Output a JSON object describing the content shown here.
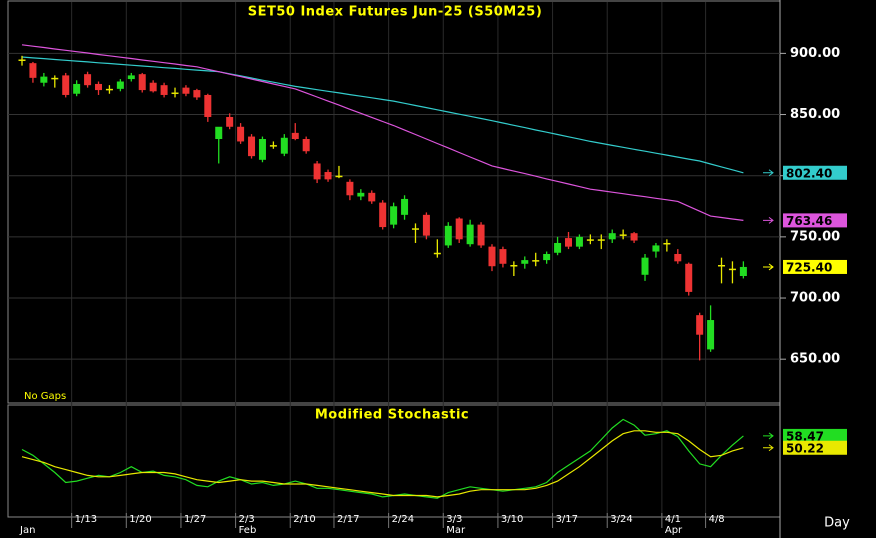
{
  "chart_data": [
    {
      "type": "candlestick",
      "title": "SET50  Index  Futures  Jun-25  (S50M25)",
      "note": "No  Gaps",
      "categories": [
        null,
        null,
        null,
        null,
        null,
        "1/13",
        null,
        null,
        null,
        null,
        "1/20",
        null,
        null,
        null,
        null,
        "1/27",
        null,
        null,
        null,
        null,
        "2/3",
        null,
        null,
        null,
        null,
        "2/10",
        null,
        null,
        null,
        "2/17",
        null,
        null,
        null,
        null,
        "2/24",
        null,
        null,
        null,
        null,
        "3/3",
        null,
        null,
        null,
        null,
        "3/10",
        null,
        null,
        null,
        null,
        "3/17",
        null,
        null,
        null,
        null,
        "3/24",
        null,
        null,
        null,
        null,
        "4/1",
        null,
        null,
        null,
        "4/8",
        null,
        null,
        null
      ],
      "months": [
        "Jan",
        null,
        null,
        null,
        null,
        null,
        null,
        null,
        null,
        null,
        null,
        null,
        null,
        null,
        null,
        null,
        null,
        null,
        null,
        null,
        "Feb",
        null,
        null,
        null,
        null,
        null,
        null,
        null,
        null,
        null,
        null,
        null,
        null,
        null,
        null,
        null,
        null,
        null,
        null,
        "Mar",
        null,
        null,
        null,
        null,
        null,
        null,
        null,
        null,
        null,
        null,
        null,
        null,
        null,
        null,
        null,
        null,
        null,
        null,
        null,
        "Apr",
        null,
        null,
        null,
        null,
        null,
        null,
        null
      ],
      "open": [
        895,
        892,
        876,
        880,
        882,
        867,
        883,
        875,
        871,
        871,
        879,
        883,
        876,
        874,
        868,
        872,
        870,
        866,
        830,
        848,
        840,
        832,
        813,
        825,
        818,
        835,
        830,
        810,
        803,
        800,
        795,
        783,
        786,
        778,
        760,
        768,
        757,
        768,
        737,
        743,
        765,
        744,
        760,
        742,
        740,
        727,
        728,
        731,
        731,
        737,
        749,
        742,
        748,
        748,
        748,
        752,
        753,
        719,
        738,
        745,
        736,
        728,
        686,
        658,
        727,
        724,
        718
      ],
      "high": [
        898,
        893,
        884,
        882,
        884,
        878,
        885,
        877,
        874,
        879,
        884,
        884,
        878,
        876,
        872,
        874,
        871,
        867,
        838,
        851,
        843,
        834,
        832,
        828,
        834,
        843,
        832,
        812,
        805,
        808,
        797,
        789,
        788,
        780,
        778,
        784,
        761,
        770,
        748,
        762,
        766,
        764,
        762,
        744,
        742,
        730,
        734,
        737,
        738,
        750,
        754,
        752,
        752,
        752,
        756,
        756,
        754,
        736,
        745,
        748,
        740,
        729,
        688,
        694,
        733,
        730,
        730
      ],
      "low": [
        890,
        876,
        873,
        872,
        864,
        865,
        872,
        866,
        867,
        869,
        877,
        868,
        868,
        864,
        864,
        865,
        862,
        844,
        810,
        838,
        826,
        814,
        811,
        822,
        816,
        829,
        818,
        794,
        795,
        798,
        780,
        780,
        777,
        756,
        757,
        764,
        745,
        748,
        733,
        741,
        745,
        742,
        741,
        722,
        725,
        718,
        724,
        726,
        728,
        735,
        740,
        740,
        744,
        740,
        745,
        748,
        745,
        714,
        733,
        738,
        728,
        702,
        649,
        656,
        712,
        712,
        716
      ],
      "close": [
        895,
        880,
        881,
        880,
        866,
        875,
        874,
        870,
        871,
        877,
        882,
        870,
        869,
        866,
        868,
        867,
        864,
        848,
        840,
        840,
        828,
        816,
        830,
        825,
        831,
        830,
        820,
        797,
        797,
        800,
        784,
        786,
        779,
        758,
        775,
        781,
        757,
        751,
        737,
        759,
        748,
        760,
        743,
        726,
        728,
        727,
        731,
        731,
        736,
        745,
        742,
        750,
        748,
        748,
        753,
        752,
        747,
        733,
        743,
        745,
        730,
        705,
        670,
        682,
        727,
        724,
        725.4
      ],
      "up_color": "#22dd22",
      "down_color": "#ee3333",
      "flat_color": "#e8e800",
      "last_label": "725.40",
      "last_label_color": "#ffff00",
      "ylim": [
        615,
        942
      ],
      "yticks": [
        {
          "value": 650,
          "label": "650.00"
        },
        {
          "value": 700,
          "label": "700.00"
        },
        {
          "value": 750,
          "label": "750.00"
        },
        {
          "value": 800,
          "label": "800.00"
        },
        {
          "value": 850,
          "label": "850.00"
        },
        {
          "value": 900,
          "label": "900.00"
        }
      ],
      "grid": true,
      "series": [
        {
          "color": "#33cccc",
          "last_label": "802.40",
          "values": [
            897,
            896.3,
            895.7,
            895,
            894.3,
            893.7,
            893,
            892.3,
            891.7,
            891,
            890.3,
            889.7,
            889,
            888.3,
            887.7,
            887,
            886.3,
            885.7,
            885,
            883.3,
            881.6,
            879.9,
            878.1,
            876.4,
            874.7,
            873,
            871.7,
            870.3,
            869,
            867.7,
            866.3,
            865,
            863.7,
            862.3,
            861,
            859.2,
            857.4,
            855.7,
            853.9,
            852.1,
            850.3,
            848.6,
            846.8,
            845,
            843.1,
            841.2,
            839.3,
            837.4,
            835.6,
            833.7,
            831.8,
            829.9,
            828,
            826.4,
            824.8,
            823.2,
            821.6,
            820,
            818.4,
            816.8,
            815.2,
            813.6,
            812,
            809.6,
            807.2,
            804.8,
            802.4
          ]
        },
        {
          "color": "#dd55dd",
          "last_label": "763.46",
          "values": [
            907,
            905.9,
            904.8,
            903.6,
            902.5,
            901.4,
            900.3,
            899.1,
            898,
            896.9,
            895.8,
            894.6,
            893.5,
            892.4,
            891.3,
            890.1,
            889,
            887,
            885,
            883,
            881,
            879,
            877,
            875,
            873,
            871,
            867.7,
            864.3,
            861,
            857.7,
            854.3,
            851,
            847.7,
            844.3,
            841,
            837.3,
            833.7,
            830,
            826.3,
            822.7,
            819,
            815.3,
            811.7,
            808,
            805.9,
            803.8,
            801.7,
            799.6,
            797.4,
            795.3,
            793.2,
            791.1,
            789,
            787.8,
            786.5,
            785.3,
            784,
            782.8,
            781.5,
            780.3,
            779,
            775,
            771,
            767,
            765.8,
            764.6,
            763.46
          ]
        }
      ]
    },
    {
      "type": "line",
      "title": "Modified  Stochastic",
      "x_label": "Day",
      "ylim": [
        2,
        80
      ],
      "series": [
        {
          "color": "#22dd22",
          "last_label": "58.47",
          "values": [
            49,
            45,
            39,
            33,
            26,
            27,
            29,
            31,
            30,
            33,
            37,
            33,
            34,
            31,
            30,
            28,
            24,
            23,
            27,
            30,
            28,
            25,
            26,
            24,
            25,
            27,
            25,
            22,
            22,
            21,
            20,
            19,
            18,
            16,
            17,
            18,
            17,
            16,
            15,
            19,
            21,
            23,
            22,
            21,
            20,
            21,
            22,
            23,
            26,
            33,
            38,
            43,
            48,
            56,
            64,
            70,
            66,
            59,
            60,
            62,
            58,
            48,
            39,
            37,
            45,
            52,
            58.47
          ]
        },
        {
          "color": "#e8e800",
          "last_label": "50.22",
          "values": [
            44,
            42,
            40,
            37,
            35,
            33,
            31,
            30,
            30,
            31,
            32,
            33,
            33,
            33,
            32,
            30,
            28,
            27,
            26,
            27,
            28,
            27,
            27,
            26,
            25,
            25,
            25,
            24,
            23,
            22,
            21,
            20,
            19,
            18,
            17,
            17,
            17,
            17,
            16,
            17,
            18,
            20,
            21,
            21,
            21,
            21,
            21,
            22,
            24,
            27,
            32,
            37,
            43,
            49,
            55,
            60,
            62,
            62,
            61,
            61,
            60,
            55,
            49,
            44,
            45,
            48,
            50.22
          ]
        }
      ]
    }
  ]
}
